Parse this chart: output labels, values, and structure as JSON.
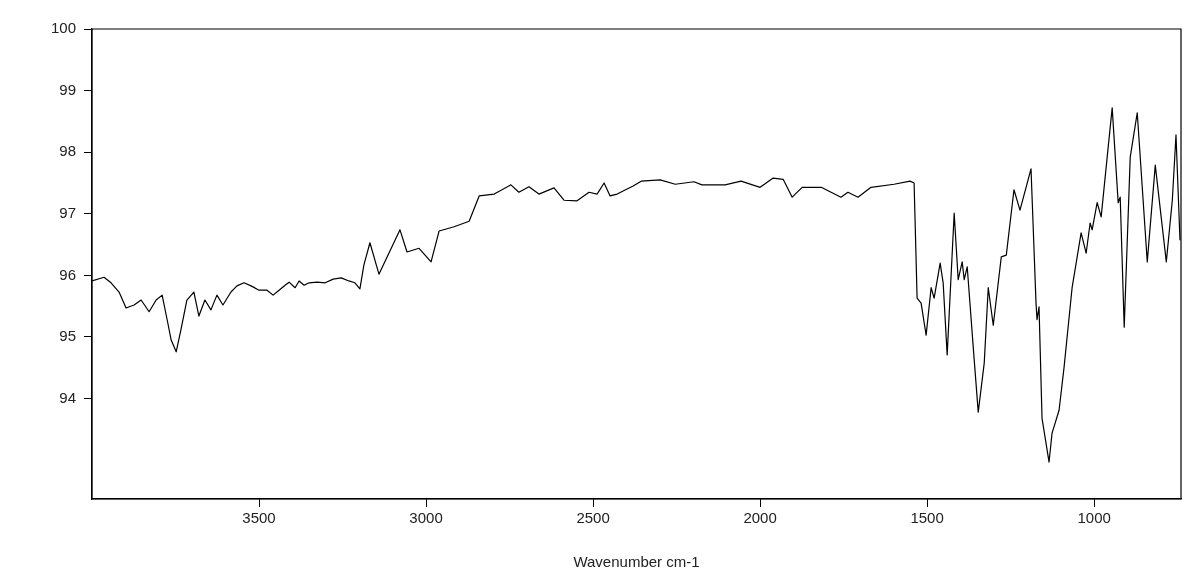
{
  "chart_data": {
    "type": "line",
    "xlabel": "Wavenumber cm-1",
    "xlim": [
      4000,
      740
    ],
    "xticks": [
      3500,
      3000,
      2500,
      2000,
      1500,
      1000
    ],
    "ylim": [
      92.37,
      100
    ],
    "yticks": [
      94,
      95,
      96,
      97,
      98,
      99,
      100
    ],
    "grid": false,
    "legend": false,
    "marker": "none",
    "line_style": "solid",
    "x": [
      4000,
      3964,
      3943,
      3919,
      3898,
      3874,
      3853,
      3829,
      3808,
      3790,
      3775,
      3763,
      3748,
      3734,
      3716,
      3695,
      3680,
      3662,
      3644,
      3626,
      3608,
      3584,
      3566,
      3545,
      3524,
      3500,
      3476,
      3458,
      3440,
      3422,
      3410,
      3392,
      3380,
      3365,
      3350,
      3326,
      3302,
      3278,
      3254,
      3231,
      3213,
      3198,
      3186,
      3168,
      3141,
      3078,
      3057,
      3021,
      2985,
      2961,
      2916,
      2871,
      2841,
      2796,
      2746,
      2722,
      2692,
      2662,
      2617,
      2587,
      2548,
      2512,
      2488,
      2467,
      2449,
      2428,
      2380,
      2356,
      2299,
      2254,
      2198,
      2174,
      2105,
      2057,
      2000,
      1961,
      1931,
      1904,
      1874,
      1817,
      1758,
      1737,
      1707,
      1668,
      1599,
      1551,
      1539,
      1530,
      1518,
      1503,
      1488,
      1479,
      1461,
      1452,
      1440,
      1419,
      1407,
      1395,
      1389,
      1380,
      1362,
      1347,
      1329,
      1317,
      1302,
      1278,
      1263,
      1240,
      1222,
      1189,
      1174,
      1171,
      1165,
      1156,
      1135,
      1126,
      1105,
      1090,
      1066,
      1039,
      1024,
      1012,
      1006,
      991,
      979,
      961,
      946,
      928,
      922,
      910,
      892,
      871,
      841,
      817,
      799,
      784,
      766,
      755,
      743
    ],
    "series": [
      {
        "color": "#000000",
        "values": [
          95.91,
          95.97,
          95.88,
          95.73,
          95.47,
          95.52,
          95.6,
          95.41,
          95.6,
          95.68,
          95.28,
          94.95,
          94.76,
          95.11,
          95.6,
          95.73,
          95.34,
          95.6,
          95.44,
          95.68,
          95.52,
          95.73,
          95.83,
          95.88,
          95.83,
          95.76,
          95.76,
          95.68,
          95.76,
          95.84,
          95.89,
          95.8,
          95.91,
          95.84,
          95.88,
          95.89,
          95.88,
          95.94,
          95.96,
          95.91,
          95.88,
          95.78,
          96.17,
          96.53,
          96.02,
          96.74,
          96.38,
          96.44,
          96.22,
          96.72,
          96.79,
          96.88,
          97.29,
          97.32,
          97.47,
          97.35,
          97.44,
          97.32,
          97.42,
          97.22,
          97.21,
          97.35,
          97.32,
          97.5,
          97.29,
          97.32,
          97.45,
          97.53,
          97.55,
          97.48,
          97.52,
          97.47,
          97.47,
          97.53,
          97.43,
          97.58,
          97.56,
          97.27,
          97.43,
          97.43,
          97.27,
          97.35,
          97.27,
          97.43,
          97.48,
          97.53,
          97.5,
          95.63,
          95.55,
          95.03,
          95.8,
          95.63,
          96.2,
          95.88,
          94.71,
          97.01,
          95.93,
          96.22,
          95.93,
          96.14,
          94.84,
          93.78,
          94.58,
          95.8,
          95.19,
          96.3,
          96.33,
          97.39,
          97.06,
          97.73,
          95.55,
          95.28,
          95.49,
          93.68,
          92.97,
          93.44,
          93.81,
          94.51,
          95.8,
          96.69,
          96.36,
          96.85,
          96.74,
          97.18,
          96.95,
          97.92,
          98.72,
          97.18,
          97.27,
          95.16,
          97.92,
          98.64,
          96.22,
          97.79,
          96.93,
          96.22,
          97.22,
          98.28,
          96.57
        ]
      }
    ]
  }
}
